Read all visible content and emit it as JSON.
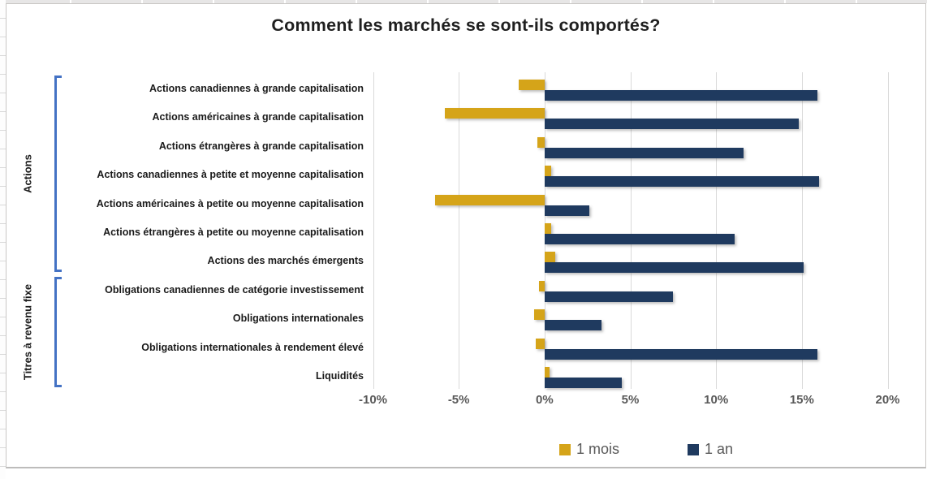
{
  "window": {
    "surface": "excel-sheet-with-embedded-chart"
  },
  "chart_data": {
    "type": "bar",
    "orientation": "horizontal",
    "title": "Comment les marchés se sont-ils comportés?",
    "categories": [
      "Actions canadiennes à grande capitalisation",
      "Actions américaines à grande capitalisation",
      "Actions étrangères à grande capitalisation",
      "Actions canadiennes à petite et moyenne capitalisation",
      "Actions américaines à petite ou moyenne capitalisation",
      "Actions étrangères à petite ou moyenne capitalisation",
      "Actions des marchés émergents",
      "Obligations canadiennes de catégorie investissement",
      "Obligations internationales",
      "Obligations internationales à rendement élevé",
      "Liquidités"
    ],
    "series": [
      {
        "name": "1 mois",
        "color": "#d5a419",
        "values": [
          -1.5,
          -5.8,
          -0.4,
          0.4,
          -6.4,
          0.4,
          0.6,
          -0.3,
          -0.6,
          -0.5,
          0.3
        ]
      },
      {
        "name": "1 an",
        "color": "#1f3a5f",
        "values": [
          15.9,
          14.8,
          11.6,
          16.0,
          2.6,
          11.1,
          15.1,
          7.5,
          3.3,
          15.9,
          4.5
        ]
      }
    ],
    "x_ticks": [
      "-10%",
      "-5%",
      "0%",
      "5%",
      "10%",
      "15%",
      "20%"
    ],
    "xlim": [
      -10,
      20
    ],
    "value_unit": "%",
    "grid": "vertical-only",
    "legend_position": "bottom",
    "groups": [
      {
        "label": "Actions",
        "from_index": 0,
        "to_index": 6
      },
      {
        "label": "Titres à revenu fixe",
        "from_index": 7,
        "to_index": 10
      }
    ],
    "colors": {
      "bracket": "#4472c4",
      "axis_text": "#595959",
      "gridline": "#d9d9d9",
      "category_text": "#1a1a1a",
      "title_text": "#1f1f1f"
    }
  }
}
